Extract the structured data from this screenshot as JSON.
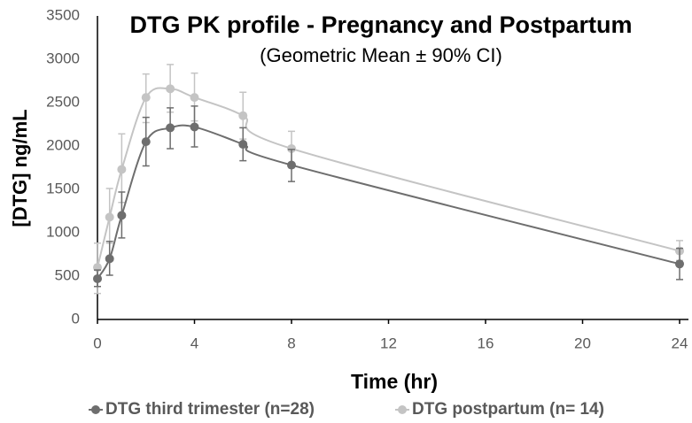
{
  "chart_data": {
    "type": "line",
    "title": "DTG PK profile - Pregnancy and Postpartum",
    "subtitle": "(Geometric Mean ± 90% CI)",
    "x_label": "Time (hr)",
    "y_label": "[DTG] ng/mL",
    "x": [
      0,
      0.5,
      1,
      2,
      3,
      4,
      6,
      8,
      24
    ],
    "series": [
      {
        "name": "DTG third trimester (n=28)",
        "color": "#6e6e6e",
        "values": [
          470,
          700,
          1200,
          2050,
          2210,
          2220,
          2020,
          1780,
          640
        ],
        "lower": [
          380,
          510,
          940,
          1770,
          1970,
          1990,
          1830,
          1590,
          460
        ],
        "upper": [
          570,
          900,
          1470,
          2330,
          2440,
          2460,
          2210,
          1960,
          820
        ]
      },
      {
        "name": "DTG postpartum (n= 14)",
        "color": "#c4c4c4",
        "values": [
          600,
          1180,
          1730,
          2560,
          2660,
          2560,
          2350,
          1970,
          790
        ],
        "lower": [
          300,
          880,
          1350,
          2270,
          2390,
          2290,
          2080,
          1780,
          680
        ],
        "upper": [
          880,
          1510,
          2140,
          2830,
          2940,
          2840,
          2620,
          2170,
          910
        ]
      }
    ],
    "xlim": [
      0,
      24
    ],
    "xticks": [
      0,
      4,
      8,
      12,
      16,
      20,
      24
    ],
    "ylim": [
      0,
      3500
    ],
    "yticks": [
      0,
      500,
      1000,
      1500,
      2000,
      2500,
      3000,
      3500
    ],
    "grid": false,
    "legend": "bottom"
  }
}
